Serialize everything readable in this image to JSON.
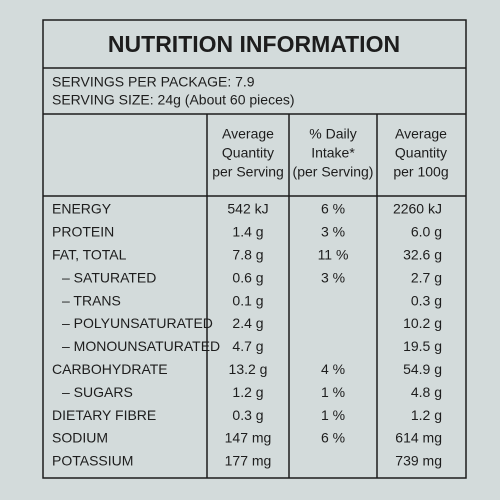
{
  "header": {
    "title": "NUTRITION INFORMATION",
    "servings_per_package": "SERVINGS PER PACKAGE: 7.9",
    "serving_size": "SERVING SIZE: 24g (About 60 pieces)"
  },
  "table": {
    "columns": [
      [
        "Average",
        "Quantity",
        "per Serving"
      ],
      [
        "% Daily",
        "Intake*",
        "(per Serving)"
      ],
      [
        "Average",
        "Quantity",
        "per 100g"
      ]
    ],
    "rows": [
      {
        "name": "ENERGY",
        "per_serving": "542 kJ",
        "daily_intake": "6 %",
        "per_100g": "2260 kJ"
      },
      {
        "name": "PROTEIN",
        "per_serving": "1.4 g",
        "daily_intake": "3 %",
        "per_100g": "6.0 g"
      },
      {
        "name": "FAT, TOTAL",
        "per_serving": "7.8 g",
        "daily_intake": "11 %",
        "per_100g": "32.6 g"
      },
      {
        "name": "– SATURATED",
        "per_serving": "0.6 g",
        "daily_intake": "3 %",
        "per_100g": "2.7 g"
      },
      {
        "name": "– TRANS",
        "per_serving": "0.1 g",
        "per_100g": "0.3 g"
      },
      {
        "name": "– POLYUNSATURATED",
        "per_serving": "2.4 g",
        "per_100g": "10.2 g"
      },
      {
        "name": "– MONOUNSATURATED",
        "per_serving": "4.7 g",
        "per_100g": "19.5 g"
      },
      {
        "name": "CARBOHYDRATE",
        "per_serving": "13.2 g",
        "daily_intake": "4 %",
        "per_100g": "54.9 g"
      },
      {
        "name": "– SUGARS",
        "per_serving": "1.2 g",
        "daily_intake": "1 %",
        "per_100g": "4.8 g"
      },
      {
        "name": "DIETARY FIBRE",
        "per_serving": "0.3 g",
        "daily_intake": "1 %",
        "per_100g": "1.2 g"
      },
      {
        "name": "SODIUM",
        "per_serving": "147 mg",
        "daily_intake": "6 %",
        "per_100g": "614 mg"
      },
      {
        "name": "POTASSIUM",
        "per_serving": "177 mg",
        "per_100g": "739 mg"
      }
    ]
  }
}
